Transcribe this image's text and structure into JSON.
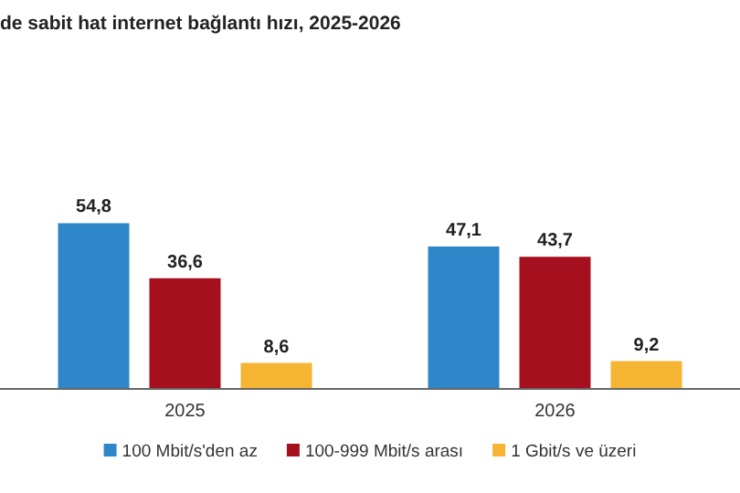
{
  "chart_data": {
    "type": "bar",
    "title": "de sabit hat internet bağlantı hızı, 2025-2026",
    "categories": [
      "2025",
      "2026"
    ],
    "series": [
      {
        "name": "100 Mbit/s'den az",
        "color": "#2e86c8",
        "values": [
          54.8,
          47.1
        ],
        "value_labels": [
          "54,8",
          "47,1"
        ]
      },
      {
        "name": "100-999 Mbit/s arası",
        "color": "#a50f1e",
        "values": [
          36.6,
          43.7
        ],
        "value_labels": [
          "36,6",
          "43,7"
        ]
      },
      {
        "name": "1 Gbit/s ve üzeri",
        "color": "#f5b533",
        "values": [
          8.6,
          9.2
        ],
        "value_labels": [
          "8,6",
          "9,2"
        ]
      }
    ],
    "legend": "bottom",
    "grid": false
  }
}
